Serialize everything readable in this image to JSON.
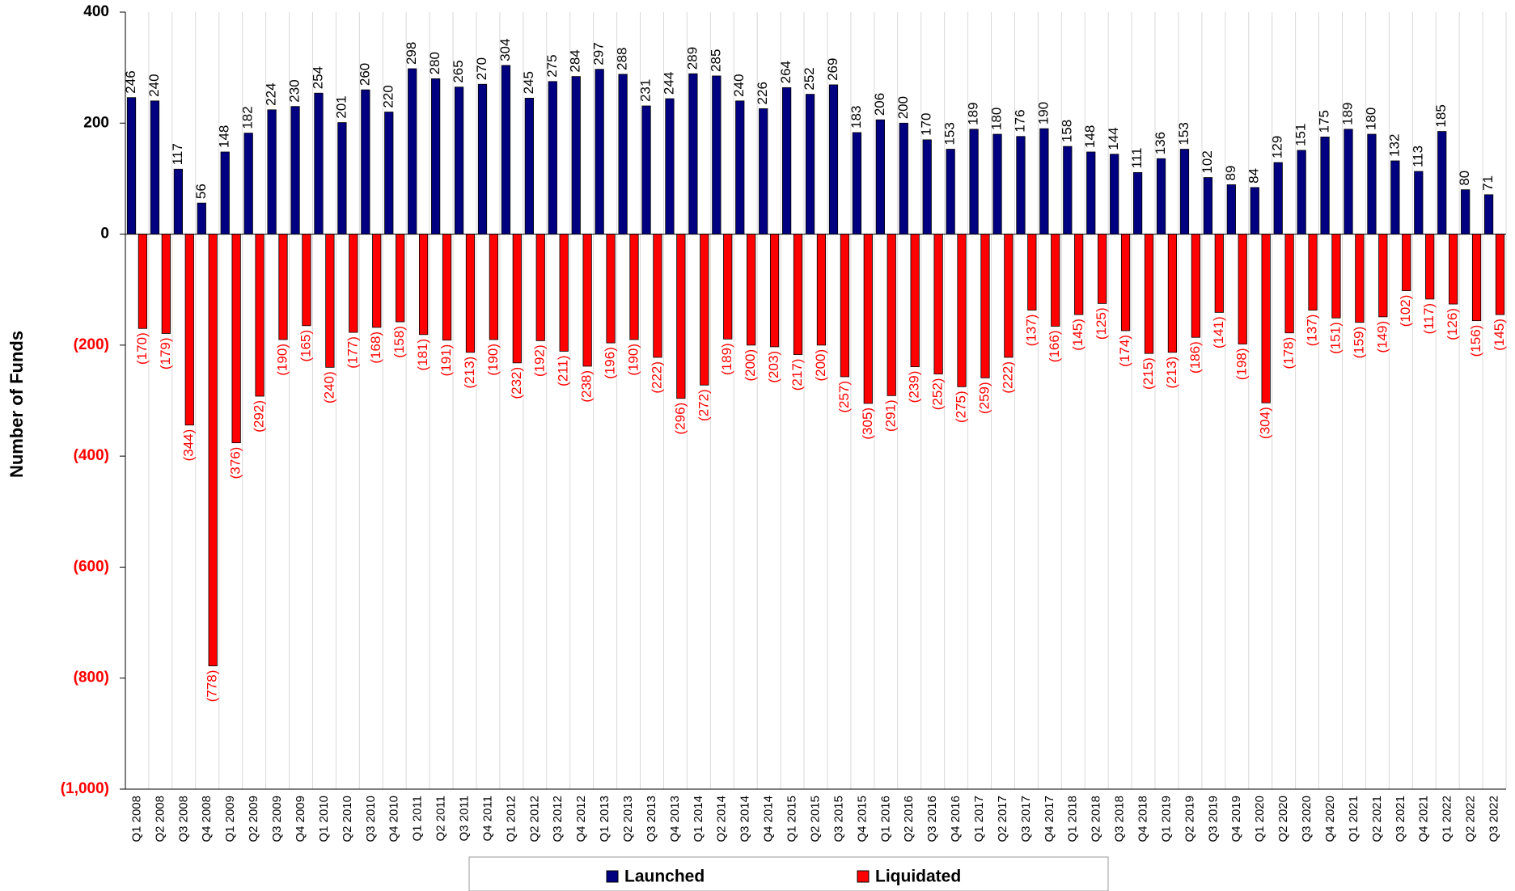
{
  "chart_data": {
    "type": "bar",
    "y_label": "Number of Funds",
    "categories": [
      "Q1 2008",
      "Q2 2008",
      "Q3 2008",
      "Q4 2008",
      "Q1 2009",
      "Q2 2009",
      "Q3 2009",
      "Q4 2009",
      "Q1 2010",
      "Q2 2010",
      "Q3 2010",
      "Q4 2010",
      "Q1 2011",
      "Q2 2011",
      "Q3 2011",
      "Q4 2011",
      "Q1 2012",
      "Q2 2012",
      "Q3 2012",
      "Q4 2012",
      "Q1 2013",
      "Q2 2013",
      "Q3 2013",
      "Q4 2013",
      "Q1 2014",
      "Q2 2014",
      "Q3 2014",
      "Q4 2014",
      "Q1 2015",
      "Q2 2015",
      "Q3 2015",
      "Q4 2015",
      "Q1 2016",
      "Q2 2016",
      "Q3 2016",
      "Q4 2016",
      "Q1 2017",
      "Q2 2017",
      "Q3 2017",
      "Q4 2017",
      "Q1 2018",
      "Q2 2018",
      "Q3 2018",
      "Q4 2018",
      "Q1 2019",
      "Q2 2019",
      "Q3 2019",
      "Q4 2019",
      "Q1 2020",
      "Q2 2020",
      "Q3 2020",
      "Q4 2020",
      "Q1 2021",
      "Q2 2021",
      "Q3 2021",
      "Q4 2021",
      "Q1 2022",
      "Q2 2022",
      "Q3 2022"
    ],
    "series": [
      {
        "name": "Launched",
        "color": "#000080",
        "label_color": "#000000",
        "values": [
          246,
          240,
          117,
          56,
          148,
          182,
          224,
          230,
          254,
          201,
          260,
          220,
          298,
          280,
          265,
          270,
          304,
          245,
          275,
          284,
          297,
          288,
          231,
          244,
          289,
          285,
          240,
          226,
          264,
          252,
          269,
          183,
          206,
          200,
          170,
          153,
          189,
          180,
          176,
          190,
          158,
          148,
          144,
          111,
          136,
          153,
          102,
          89,
          84,
          129,
          151,
          175,
          189,
          180,
          132,
          113,
          185,
          80,
          71
        ]
      },
      {
        "name": "Liquidated",
        "color": "#ff0000",
        "label_color": "#ff0000",
        "values": [
          -170,
          -179,
          -344,
          -778,
          -376,
          -292,
          -190,
          -165,
          -240,
          -177,
          -168,
          -158,
          -181,
          -191,
          -213,
          -190,
          -232,
          -192,
          -211,
          -238,
          -196,
          -190,
          -222,
          -296,
          -272,
          -189,
          -200,
          -203,
          -217,
          -200,
          -257,
          -305,
          -291,
          -239,
          -252,
          -275,
          -259,
          -222,
          -137,
          -166,
          -145,
          -125,
          -174,
          -215,
          -213,
          -186,
          -141,
          -198,
          -304,
          -178,
          -137,
          -151,
          -159,
          -149,
          -102,
          -117,
          -126,
          -156,
          -145
        ],
        "value_labels": [
          "(170)",
          "(179)",
          "(344)",
          "(778)",
          "(376)",
          "(292)",
          "(190)",
          "(165)",
          "(240)",
          "(177)",
          "(168)",
          "(158)",
          "(181)",
          "(191)",
          "(213)",
          "(190)",
          "(232)",
          "(192)",
          "(211)",
          "(238)",
          "(196)",
          "(190)",
          "(222)",
          "(296)",
          "(272)",
          "(189)",
          "(200)",
          "(203)",
          "(217)",
          "(200)",
          "(257)",
          "(305)",
          "(291)",
          "(239)",
          "(252)",
          "(275)",
          "(259)",
          "(222)",
          "(137)",
          "(166)",
          "(145)",
          "(125)",
          "(174)",
          "(215)",
          "(213)",
          "(186)",
          "(141)",
          "(198)",
          "(304)",
          "(178)",
          "(137)",
          "(151)",
          "(159)",
          "(149)",
          "(102)",
          "(117)",
          "(126)",
          "(156)",
          "(145)"
        ]
      }
    ],
    "ylim": [
      -1000,
      400
    ],
    "yticks": [
      {
        "value": -1000,
        "label": "(1,000)"
      },
      {
        "value": -800,
        "label": "(800)"
      },
      {
        "value": -600,
        "label": "(600)"
      },
      {
        "value": -400,
        "label": "(400)"
      },
      {
        "value": -200,
        "label": "(200)"
      },
      0,
      200,
      400
    ],
    "negative_tick_color": "#ff0000",
    "grid": true,
    "legend": "bottom"
  }
}
